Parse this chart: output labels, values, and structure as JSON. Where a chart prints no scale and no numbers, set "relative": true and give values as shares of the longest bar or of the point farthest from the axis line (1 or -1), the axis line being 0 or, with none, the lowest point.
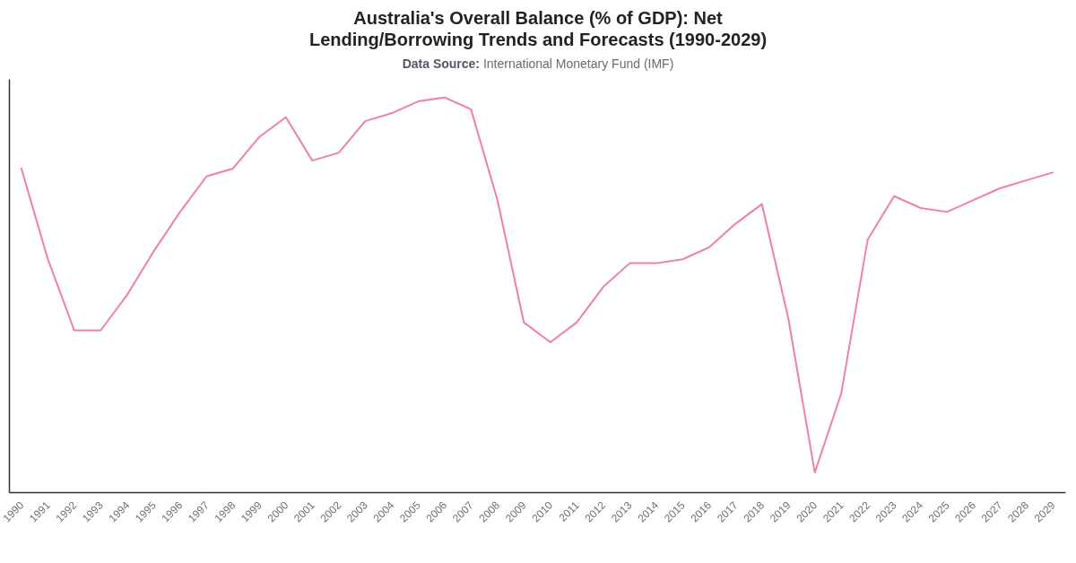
{
  "chart_data": {
    "type": "line",
    "title": "Australia's Overall Balance (% of GDP): Net Lending/Borrowing Trends and Forecasts (1990-2029)",
    "subtitle": "Data Source: International Monetary Fund (IMF)",
    "categories": [
      "1990",
      "1991",
      "1992",
      "1993",
      "1994",
      "1995",
      "1996",
      "1997",
      "1998",
      "1999",
      "2000",
      "2001",
      "2002",
      "2003",
      "2004",
      "2005",
      "2006",
      "2007",
      "2008",
      "2009",
      "2010",
      "2011",
      "2012",
      "2013",
      "2014",
      "2015",
      "2016",
      "2017",
      "2018",
      "2019",
      "2020",
      "2021",
      "2022",
      "2023",
      "2024",
      "2025",
      "2026",
      "2027",
      "2028",
      "2029"
    ],
    "relative": true,
    "series": [
      {
        "color": "#ef7fab",
        "values": [
          0.82,
          0.59,
          0.41,
          0.41,
          0.5,
          0.61,
          0.71,
          0.8,
          0.82,
          0.9,
          0.95,
          0.84,
          0.86,
          0.94,
          0.96,
          0.99,
          1,
          0.97,
          0.74,
          0.43,
          0.38,
          0.43,
          0.52,
          0.58,
          0.58,
          0.59,
          0.62,
          0.68,
          0.73,
          0.44,
          0.05,
          0.25,
          0.64,
          0.75,
          0.72,
          0.71,
          0.74,
          0.77,
          0.79,
          0.81
        ]
      }
    ]
  }
}
